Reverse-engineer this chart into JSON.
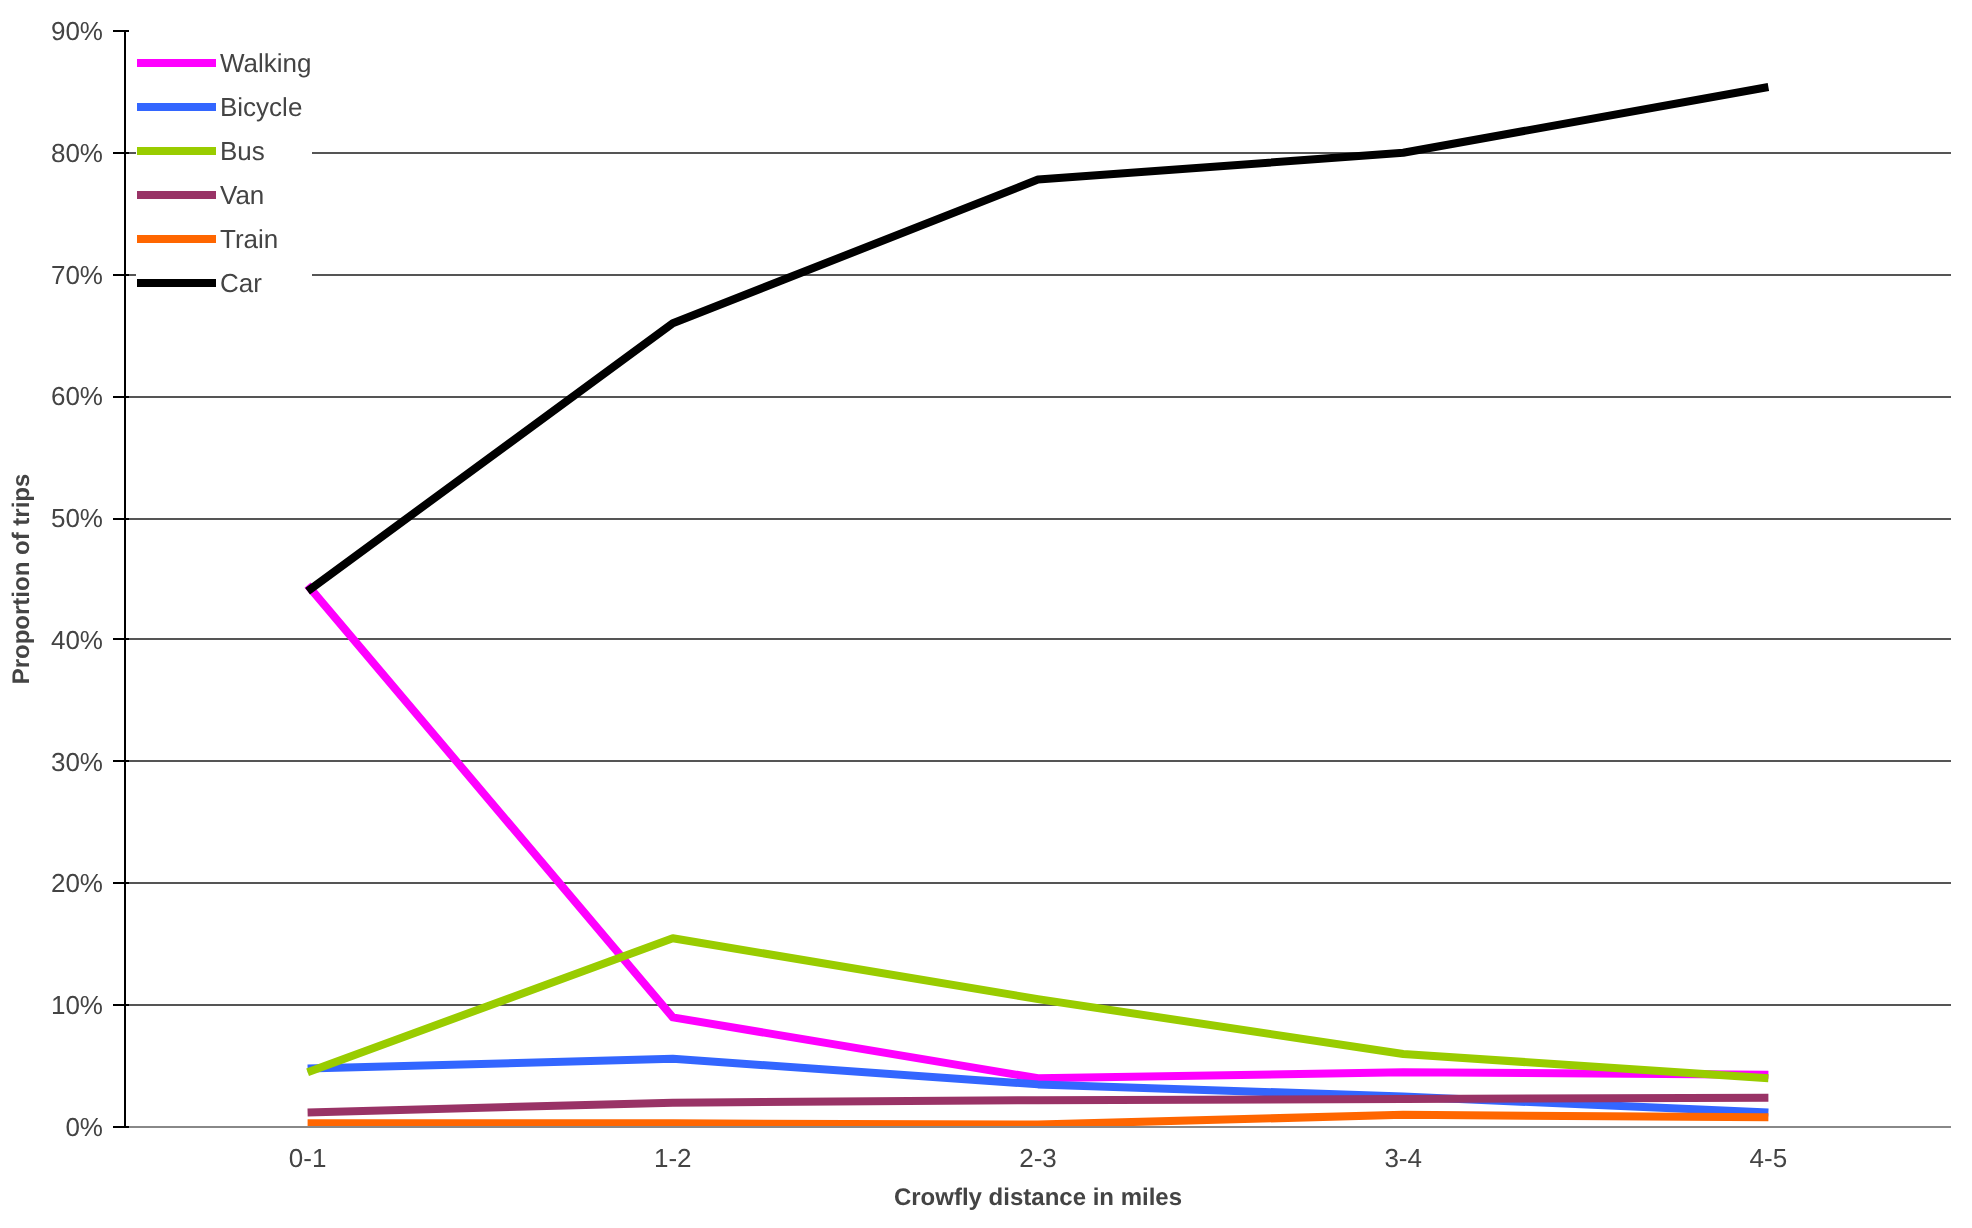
{
  "chart_data": {
    "type": "line",
    "xlabel": "Crowfly distance in miles",
    "ylabel": "Proportion of trips",
    "categories": [
      "0-1",
      "1-2",
      "2-3",
      "3-4",
      "4-5"
    ],
    "series": [
      {
        "name": "Walking",
        "color": "#ff00ff",
        "values": [
          44.5,
          9,
          4,
          4.5,
          4.3
        ]
      },
      {
        "name": "Bicycle",
        "color": "#3366ff",
        "values": [
          4.8,
          5.6,
          3.5,
          2.5,
          1.2
        ]
      },
      {
        "name": "Bus",
        "color": "#99cc00",
        "values": [
          4.5,
          15.5,
          10.5,
          6,
          4
        ]
      },
      {
        "name": "Van",
        "color": "#993366",
        "values": [
          1.2,
          2,
          2.2,
          2.3,
          2.4
        ]
      },
      {
        "name": "Train",
        "color": "#ff6600",
        "values": [
          0.3,
          0.3,
          0.2,
          1,
          0.8
        ]
      },
      {
        "name": "Car",
        "color": "#000000",
        "values": [
          44,
          66,
          77.8,
          80,
          85.4
        ]
      }
    ],
    "ylim": [
      0,
      90
    ],
    "yticks": [
      {
        "value": 0,
        "label": "0%"
      },
      {
        "value": 10,
        "label": "10%"
      },
      {
        "value": 20,
        "label": "20%"
      },
      {
        "value": 30,
        "label": "30%"
      },
      {
        "value": 40,
        "label": "40%"
      },
      {
        "value": 50,
        "label": "50%"
      },
      {
        "value": 60,
        "label": "60%"
      },
      {
        "value": 70,
        "label": "70%"
      },
      {
        "value": 80,
        "label": "80%"
      },
      {
        "value": 90,
        "label": "90%"
      }
    ],
    "grid": "y",
    "legend": "top left",
    "line_style": "solid"
  }
}
